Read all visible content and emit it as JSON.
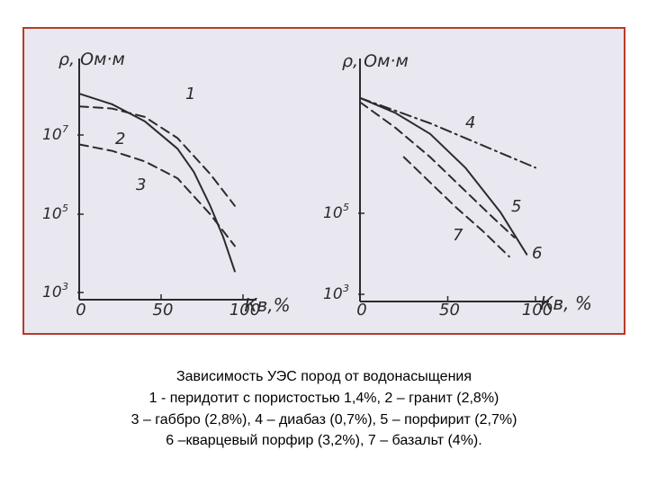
{
  "caption": {
    "line1": "Зависимость УЭС пород от водонасыщения",
    "line2": "1 - перидотит с пористостью 1,4%, 2 – гранит (2,8%)",
    "line3": "3 – габбро (2,8%), 4 – диабаз (0,7%), 5 – порфирит (2,7%)",
    "line4": "6 –кварцевый порфир (3,2%), 7 – базальт (4%)."
  },
  "colors": {
    "frame": "#b83a2a",
    "paper": "#e9e7ef",
    "ink": "#2b2b2b"
  },
  "chart_data": [
    {
      "type": "line",
      "ylabel": "ρ, Ом·м",
      "xlabel": "Кв,%",
      "xlim": [
        0,
        100
      ],
      "ylim": [
        3,
        8
      ],
      "x_ticks": [
        "0",
        "50",
        "100"
      ],
      "y_ticks": [
        "10",
        "10",
        "10"
      ],
      "y_tick_exponents": [
        "7",
        "5",
        "3"
      ],
      "series": [
        {
          "name": "1",
          "dash": "dashed",
          "x": [
            0,
            20,
            40,
            60,
            80,
            95
          ],
          "y": [
            7.4,
            7.35,
            7.15,
            6.65,
            5.8,
            5.05
          ]
        },
        {
          "name": "2",
          "dash": "solid",
          "x": [
            0,
            20,
            40,
            60,
            70,
            80,
            88,
            95
          ],
          "y": [
            7.7,
            7.45,
            7.05,
            6.4,
            5.85,
            5.05,
            4.3,
            3.5
          ]
        },
        {
          "name": "3",
          "dash": "dashed",
          "x": [
            0,
            20,
            40,
            60,
            80,
            95
          ],
          "y": [
            6.5,
            6.35,
            6.1,
            5.7,
            4.85,
            4.1
          ]
        }
      ]
    },
    {
      "type": "line",
      "ylabel": "ρ, Ом·м",
      "xlabel": "Кв, %",
      "xlim": [
        0,
        100
      ],
      "ylim": [
        3,
        8
      ],
      "x_ticks": [
        "0",
        "50",
        "100"
      ],
      "y_ticks": [
        "10",
        "10",
        "10"
      ],
      "y_tick_exponents": [
        "7",
        "5",
        "3"
      ],
      "series": [
        {
          "name": "4",
          "dash": "dashdot",
          "x": [
            0,
            20,
            40,
            60,
            80,
            100
          ],
          "y": [
            7.6,
            7.3,
            7.0,
            6.65,
            6.3,
            5.95
          ]
        },
        {
          "name": "5",
          "dash": "dashed",
          "x": [
            0,
            20,
            40,
            60,
            75,
            88
          ],
          "y": [
            7.5,
            6.9,
            6.2,
            5.4,
            4.8,
            4.3
          ]
        },
        {
          "name": "6",
          "dash": "solid",
          "x": [
            0,
            20,
            40,
            60,
            80,
            95
          ],
          "y": [
            7.6,
            7.25,
            6.75,
            5.95,
            4.9,
            3.9
          ]
        },
        {
          "name": "7",
          "dash": "dashed",
          "x": [
            25,
            40,
            55,
            70,
            85
          ],
          "y": [
            6.2,
            5.6,
            5.0,
            4.45,
            3.85
          ]
        }
      ]
    }
  ]
}
